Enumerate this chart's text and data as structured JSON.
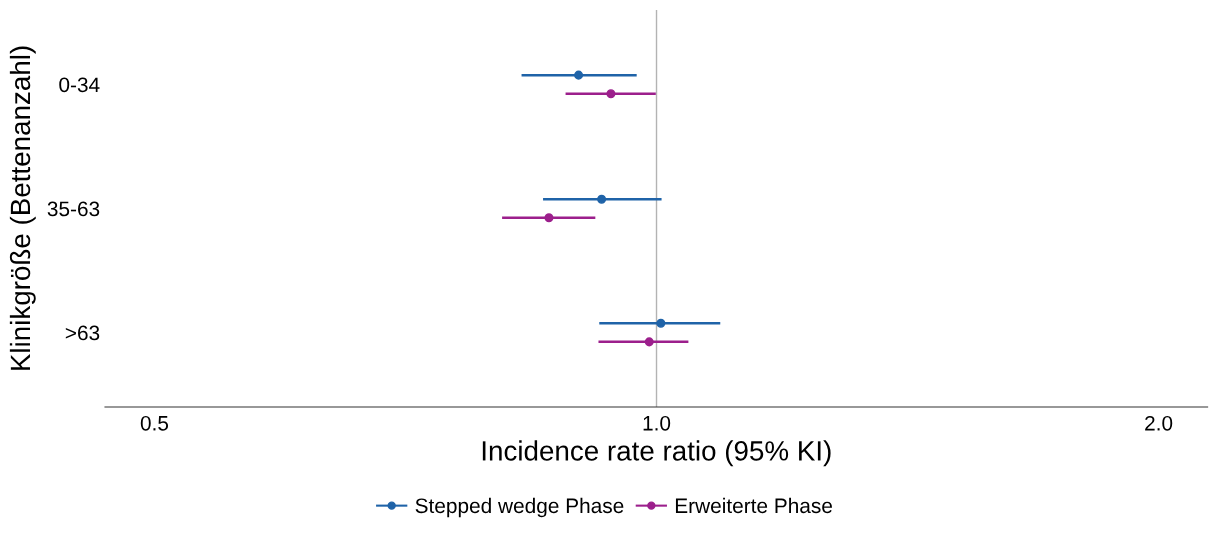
{
  "chart_data": {
    "type": "scatter",
    "orientation": "horizontal",
    "xlabel": "Incidence rate ratio (95% KI)",
    "ylabel": "Klinikgröße (Bettenanzahl)",
    "categories": [
      "0-34",
      "35-63",
      ">63"
    ],
    "series": [
      {
        "name": "Stepped wedge Phase",
        "color": "#1f63a8",
        "values": [
          0.898,
          0.927,
          1.006
        ],
        "errors": [
          [
            0.83,
            0.973
          ],
          [
            0.855,
            1.007
          ],
          [
            0.924,
            1.092
          ]
        ]
      },
      {
        "name": "Erweiterte Phase",
        "color": "#9c1f8c",
        "values": [
          0.939,
          0.862,
          0.99
        ],
        "errors": [
          [
            0.882,
            0.999
          ],
          [
            0.808,
            0.919
          ],
          [
            0.923,
            1.045
          ]
        ]
      }
    ],
    "log": "x",
    "xlim": [
      0.467,
      2.14
    ],
    "xticks": [
      {
        "value": 0.5,
        "label": "0.5"
      },
      {
        "value": 1,
        "label": "1.0"
      },
      {
        "value": 2,
        "label": "2.0"
      }
    ],
    "ref_lines": [
      {
        "axis": "x",
        "value": 1,
        "color": "#b3b3b3"
      }
    ],
    "marker": "circle",
    "grid": false,
    "legend": "bottom"
  }
}
